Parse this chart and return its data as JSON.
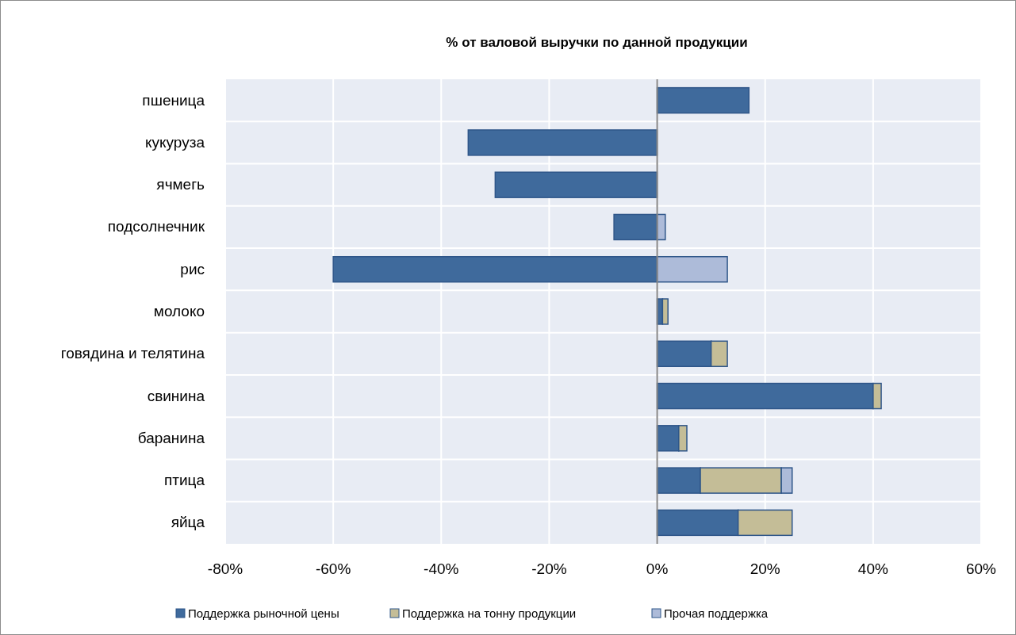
{
  "chart_data": {
    "type": "bar",
    "orientation": "horizontal",
    "stacked": true,
    "title": "% от валовой выручки по данной продукции",
    "categories": [
      "пшеница",
      "кукуруза",
      "ячмегь",
      "подсолнечник",
      "рис",
      "молоко",
      "говядина и телятина",
      "свинина",
      "баранина",
      "птица",
      "яйца"
    ],
    "series": [
      {
        "name": "Поддержка рыночной цены",
        "color": "#3f6a9c",
        "values": [
          17,
          -35,
          -30,
          -8,
          -60,
          1,
          10,
          40,
          4,
          8,
          15
        ]
      },
      {
        "name": "Поддержка на тонну продукции",
        "color": "#c4bd97",
        "values": [
          null,
          null,
          null,
          null,
          null,
          1,
          3,
          1.5,
          1.5,
          15,
          10
        ]
      },
      {
        "name": "Прочая поддержка",
        "color": "#adbbd9",
        "values": [
          null,
          null,
          null,
          1.5,
          13,
          null,
          null,
          null,
          null,
          2,
          null
        ]
      }
    ],
    "xlim": [
      -80,
      60
    ],
    "xticks": [
      {
        "value": -80,
        "label": "-80%"
      },
      {
        "value": -60,
        "label": "-60%"
      },
      {
        "value": -40,
        "label": "-40%"
      },
      {
        "value": -20,
        "label": "-20%"
      },
      {
        "value": 0,
        "label": "0%"
      },
      {
        "value": 20,
        "label": "20%"
      },
      {
        "value": 40,
        "label": "40%"
      },
      {
        "value": 60,
        "label": "60%"
      }
    ],
    "grid": true,
    "legend": "bottom"
  }
}
